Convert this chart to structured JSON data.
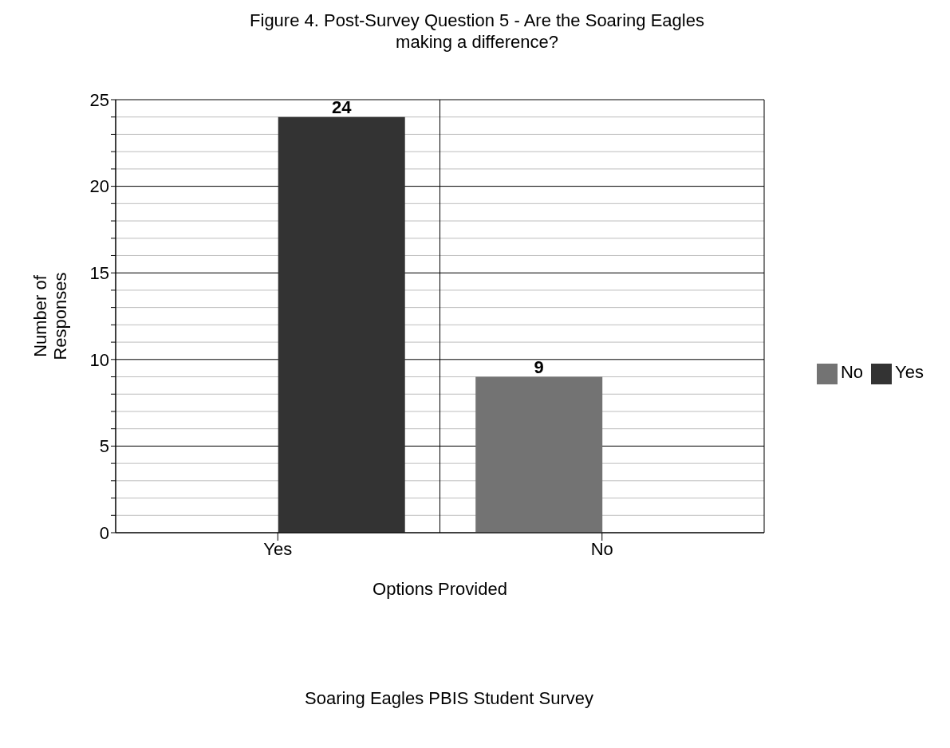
{
  "chart_data": {
    "type": "bar",
    "title": "Figure 4. Post-Survey Question 5 - Are the Soaring Eagles making a difference?",
    "xlabel": "Options Provided",
    "ylabel": "Number of Responses",
    "categories": [
      "Yes",
      "No"
    ],
    "series": [
      {
        "name": "No",
        "color": "#737373",
        "values": [
          null,
          9
        ]
      },
      {
        "name": "Yes",
        "color": "#333333",
        "values": [
          24,
          null
        ]
      }
    ],
    "ylim": [
      0,
      25
    ],
    "yticks": [
      0,
      {
        "value": 1,
        "label": null
      },
      {
        "value": 2,
        "label": null
      },
      {
        "value": 3,
        "label": null
      },
      {
        "value": 4,
        "label": null
      },
      5,
      {
        "value": 6,
        "label": null
      },
      {
        "value": 7,
        "label": null
      },
      {
        "value": 8,
        "label": null
      },
      {
        "value": 9,
        "label": null
      },
      10,
      {
        "value": 11,
        "label": null
      },
      {
        "value": 12,
        "label": null
      },
      {
        "value": 13,
        "label": null
      },
      {
        "value": 14,
        "label": null
      },
      15,
      {
        "value": 16,
        "label": null
      },
      {
        "value": 17,
        "label": null
      },
      {
        "value": 18,
        "label": null
      },
      {
        "value": 19,
        "label": null
      },
      20,
      {
        "value": 21,
        "label": null
      },
      {
        "value": 22,
        "label": null
      },
      {
        "value": 23,
        "label": null
      },
      {
        "value": 24,
        "label": null
      },
      25
    ],
    "grid": true,
    "legend": "right",
    "data_labels": true,
    "annotations": [
      "Soaring Eagles PBIS Student Survey"
    ]
  }
}
